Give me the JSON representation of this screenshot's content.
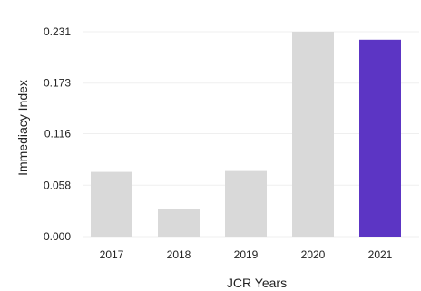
{
  "chart_data": {
    "type": "bar",
    "categories": [
      "2017",
      "2018",
      "2019",
      "2020",
      "2021"
    ],
    "values": [
      0.073,
      0.031,
      0.074,
      0.231,
      0.222
    ],
    "xlabel": "JCR Years",
    "ylabel": "Immediacy Index",
    "ylim": [
      0,
      0.231
    ],
    "yticks": [
      0.0,
      0.058,
      0.116,
      0.173,
      0.231
    ],
    "ytick_labels": [
      "0.000",
      "0.058",
      "0.116",
      "0.173",
      "0.231"
    ],
    "grid": true,
    "bar_colors": [
      "#d9d9d9",
      "#d9d9d9",
      "#d9d9d9",
      "#d9d9d9",
      "#5c35c4"
    ],
    "grid_color": "#efefef"
  }
}
